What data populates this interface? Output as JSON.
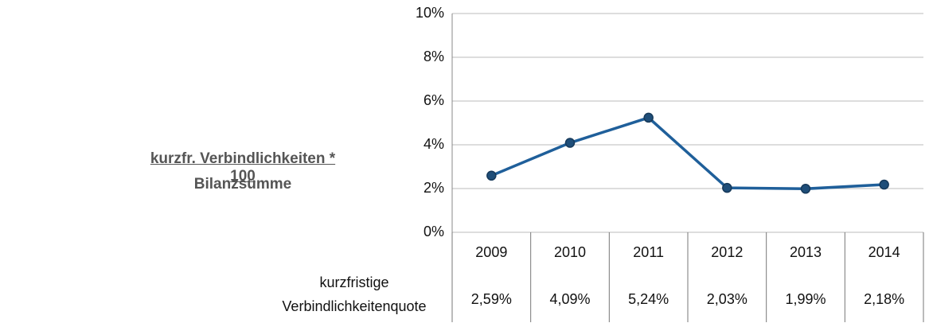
{
  "chart_data": {
    "type": "line",
    "formula": {
      "numerator": "kurzfr. Verbindlichkeiten * 100",
      "denominator": "Bilanzsumme"
    },
    "categories": [
      "2009",
      "2010",
      "2011",
      "2012",
      "2013",
      "2014"
    ],
    "series": [
      {
        "name": "kurzfristige Verbindlichkeitenquote",
        "color": "#1f5f9a",
        "values": [
          2.59,
          4.09,
          5.24,
          2.03,
          1.99,
          2.18
        ],
        "value_labels": [
          "2,59%",
          "4,09%",
          "5,24%",
          "2,03%",
          "1,99%",
          "2,18%"
        ]
      }
    ],
    "ylim": [
      0,
      10
    ],
    "yticks": [
      {
        "value": 0,
        "label": "0%"
      },
      {
        "value": 2,
        "label": "2%"
      },
      {
        "value": 4,
        "label": "4%"
      },
      {
        "value": 6,
        "label": "6%"
      },
      {
        "value": 8,
        "label": "8%"
      },
      {
        "value": 10,
        "label": "10%"
      }
    ],
    "grid": true
  }
}
